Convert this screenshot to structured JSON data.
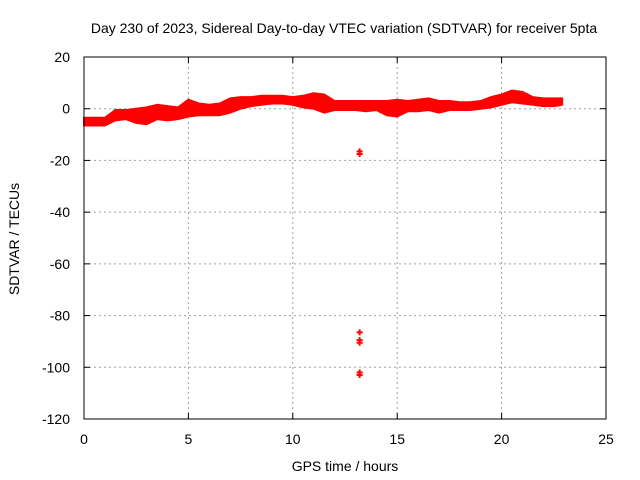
{
  "chart_data": {
    "type": "scatter",
    "title": "Day 230 of 2023, Sidereal Day-to-day VTEC variation (SDTVAR) for receiver 5pta",
    "xlabel": "GPS time / hours",
    "ylabel": "SDTVAR / TECUs",
    "xlim": [
      0,
      25
    ],
    "ylim": [
      -120,
      20
    ],
    "xticks": [
      0,
      5,
      10,
      15,
      20,
      25
    ],
    "yticks": [
      20,
      0,
      -20,
      -40,
      -60,
      -80,
      -100,
      -120
    ],
    "grid": true,
    "marker_color": "#ff0000",
    "series": [
      {
        "name": "SDTVAR",
        "band": {
          "x": [
            0.0,
            0.5,
            1.0,
            1.5,
            2.0,
            2.5,
            3.0,
            3.5,
            4.0,
            4.5,
            5.0,
            5.5,
            6.0,
            6.5,
            7.0,
            7.5,
            8.0,
            8.5,
            9.0,
            9.5,
            10.0,
            10.5,
            11.0,
            11.5,
            12.0,
            12.5,
            13.0,
            13.5,
            14.0,
            14.5,
            15.0,
            15.5,
            16.0,
            16.5,
            17.0,
            17.5,
            18.0,
            18.5,
            19.0,
            19.5,
            20.0,
            20.5,
            21.0,
            21.5,
            22.0,
            22.5,
            22.9
          ],
          "upper": [
            -3.5,
            -3.5,
            -3.5,
            -0.5,
            -0.5,
            0.0,
            0.5,
            1.5,
            1.0,
            0.5,
            3.5,
            2.0,
            1.5,
            2.0,
            4.0,
            4.5,
            4.5,
            5.0,
            5.0,
            5.0,
            4.5,
            5.0,
            6.0,
            5.5,
            3.0,
            3.0,
            3.0,
            3.0,
            3.0,
            3.0,
            3.5,
            3.0,
            3.5,
            4.0,
            3.0,
            3.0,
            2.5,
            2.5,
            3.0,
            4.5,
            5.5,
            7.0,
            6.5,
            4.5,
            4.0,
            4.0,
            4.0
          ],
          "lower": [
            -6.5,
            -6.5,
            -6.5,
            -4.5,
            -4.0,
            -5.5,
            -6.0,
            -4.0,
            -4.5,
            -4.0,
            -3.0,
            -2.5,
            -2.5,
            -2.5,
            -1.5,
            0.0,
            1.0,
            1.5,
            2.0,
            2.0,
            1.5,
            0.5,
            0.0,
            -1.5,
            -0.5,
            -0.5,
            -0.5,
            -1.0,
            -0.5,
            -2.5,
            -3.0,
            -1.0,
            -1.0,
            -0.5,
            -1.5,
            -0.5,
            -0.5,
            -0.5,
            0.0,
            0.5,
            1.5,
            2.5,
            2.0,
            1.5,
            1.0,
            1.0,
            1.5
          ]
        },
        "points": [
          {
            "x": 13.2,
            "y": -16.5
          },
          {
            "x": 13.2,
            "y": -17.5
          },
          {
            "x": 13.2,
            "y": -86.5
          },
          {
            "x": 13.2,
            "y": -89.5
          },
          {
            "x": 13.2,
            "y": -90.5
          },
          {
            "x": 13.2,
            "y": -102.0
          },
          {
            "x": 13.2,
            "y": -103.0
          }
        ]
      }
    ]
  }
}
